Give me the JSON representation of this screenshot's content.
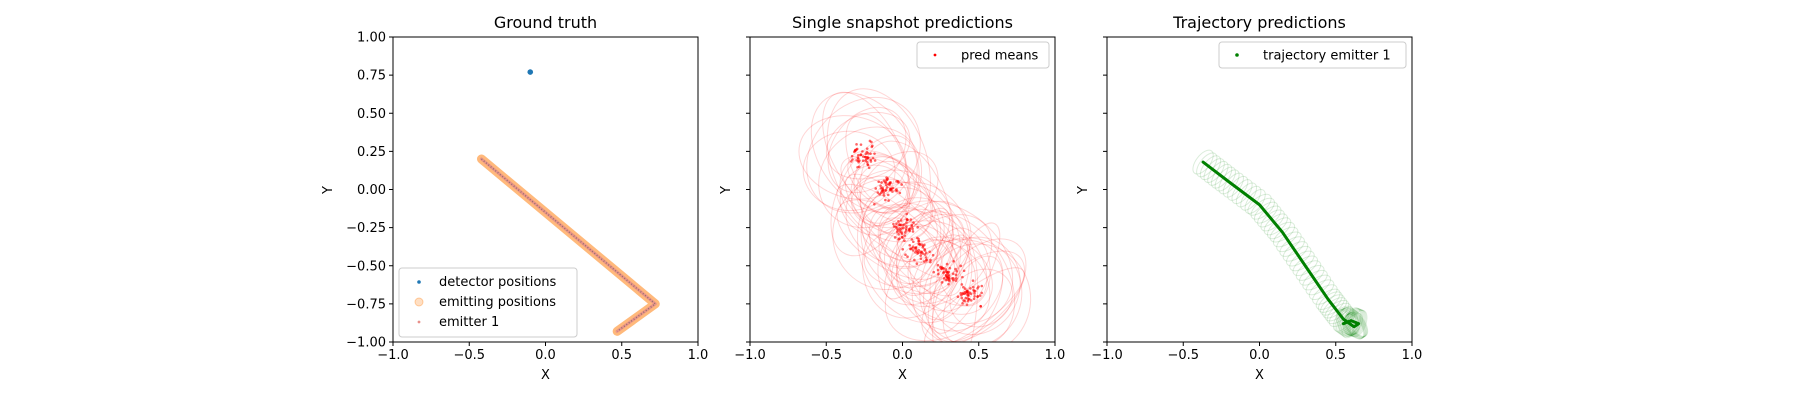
{
  "chart_data": [
    {
      "type": "scatter",
      "title": "Ground truth",
      "xlabel": "X",
      "ylabel": "Y",
      "xlim": [
        -1.0,
        1.0
      ],
      "ylim": [
        -1.0,
        1.0
      ],
      "xticks": [
        "−1.0",
        "−0.5",
        "0.0",
        "0.5",
        "1.0"
      ],
      "yticks": [
        "−1.00",
        "−0.75",
        "−0.50",
        "−0.25",
        "0.00",
        "0.25",
        "0.50",
        "0.75",
        "1.00"
      ],
      "legend_position": "lower-left",
      "series": [
        {
          "name": "detector positions",
          "color": "#1f77b4",
          "points": [
            [
              -0.1,
              0.77
            ]
          ]
        },
        {
          "name": "emitting positions",
          "color": "#ff7f0e",
          "path": [
            [
              -0.42,
              0.2
            ],
            [
              0.72,
              -0.75
            ],
            [
              0.47,
              -0.93
            ]
          ]
        },
        {
          "name": "emitter 1",
          "color": "#e8908a",
          "path": [
            [
              -0.42,
              0.2
            ],
            [
              0.72,
              -0.75
            ],
            [
              0.47,
              -0.93
            ]
          ]
        }
      ]
    },
    {
      "type": "scatter",
      "title": "Single snapshot predictions",
      "xlabel": "X",
      "ylabel": "Y",
      "xlim": [
        -1.0,
        1.0
      ],
      "ylim": [
        -1.0,
        1.0
      ],
      "xticks": [
        "−1.0",
        "−0.5",
        "0.0",
        "0.5",
        "1.0"
      ],
      "legend_position": "top-right",
      "series": [
        {
          "name": "pred means",
          "color": "#ff0000",
          "cluster_centers": [
            [
              -0.25,
              0.22
            ],
            [
              -0.1,
              0.0
            ],
            [
              0.1,
              -0.4
            ],
            [
              0.3,
              -0.55
            ],
            [
              0.45,
              -0.7
            ],
            [
              0.0,
              -0.25
            ]
          ]
        }
      ]
    },
    {
      "type": "scatter",
      "title": "Trajectory predictions",
      "xlabel": "X",
      "ylabel": "Y",
      "xlim": [
        -1.0,
        1.0
      ],
      "ylim": [
        -1.0,
        1.0
      ],
      "xticks": [
        "−1.0",
        "−0.5",
        "0.0",
        "0.5",
        "1.0"
      ],
      "legend_position": "top-right",
      "series": [
        {
          "name": "trajectory emitter 1",
          "color": "#008000",
          "path": [
            [
              -0.37,
              0.18
            ],
            [
              -0.2,
              0.05
            ],
            [
              0.0,
              -0.1
            ],
            [
              0.15,
              -0.28
            ],
            [
              0.3,
              -0.5
            ],
            [
              0.45,
              -0.72
            ],
            [
              0.55,
              -0.85
            ],
            [
              0.62,
              -0.9
            ],
            [
              0.65,
              -0.88
            ],
            [
              0.6,
              -0.86
            ],
            [
              0.55,
              -0.88
            ]
          ]
        }
      ]
    }
  ]
}
